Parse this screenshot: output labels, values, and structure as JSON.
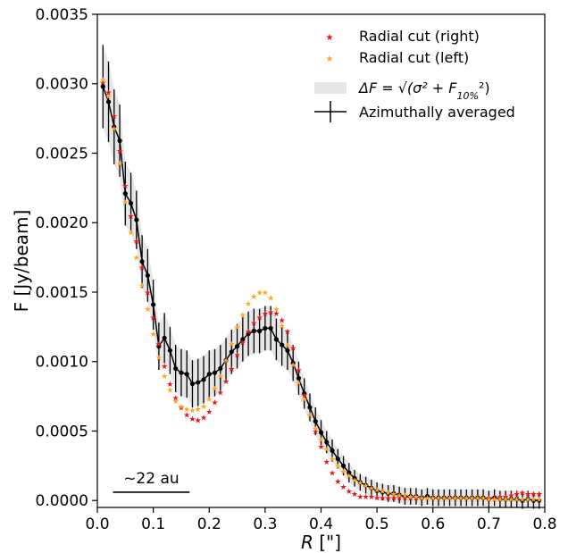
{
  "chart_data": {
    "type": "line",
    "xlabel_main": "R",
    "xlabel_unit": " [\"]",
    "ylabel": "F [Jy/beam]",
    "xlim": [
      0.0,
      0.8
    ],
    "ylim": [
      -5e-05,
      0.0035
    ],
    "x_ticks": [
      0.0,
      0.1,
      0.2,
      0.3,
      0.4,
      0.5,
      0.6,
      0.7,
      0.8
    ],
    "x_tick_labels": [
      "0.0",
      "0.1",
      "0.2",
      "0.3",
      "0.4",
      "0.5",
      "0.6",
      "0.7",
      "0.8"
    ],
    "y_ticks": [
      0.0,
      0.0005,
      0.001,
      0.0015,
      0.002,
      0.0025,
      0.003,
      0.0035
    ],
    "y_tick_labels": [
      "0.0000",
      "0.0005",
      "0.0010",
      "0.0015",
      "0.0020",
      "0.0025",
      "0.0030",
      "0.0035"
    ],
    "grid": false,
    "legend_position": "top-right",
    "legend": {
      "right_cut": "Radial cut (right)",
      "left_cut": "Radial cut (left)",
      "band_prefix": "ΔF = √(σ² + F",
      "band_sub": "10%",
      "band_suffix": "²)",
      "average": "Azimuthally averaged"
    },
    "scale_bar": {
      "label": "~22 au",
      "x_start": 0.028,
      "x_end": 0.165,
      "y": 6e-05
    },
    "colors": {
      "right_cut": "#e8141c",
      "left_cut": "#ffa51f",
      "band": "#e6e6e6",
      "average": "#000000"
    },
    "series": [
      {
        "name": "Azimuthally averaged",
        "x": [
          0.01,
          0.02,
          0.03,
          0.04,
          0.05,
          0.06,
          0.07,
          0.08,
          0.09,
          0.1,
          0.11,
          0.12,
          0.13,
          0.14,
          0.15,
          0.16,
          0.17,
          0.18,
          0.19,
          0.2,
          0.21,
          0.22,
          0.23,
          0.24,
          0.25,
          0.26,
          0.27,
          0.28,
          0.29,
          0.3,
          0.31,
          0.32,
          0.33,
          0.34,
          0.35,
          0.36,
          0.37,
          0.38,
          0.39,
          0.4,
          0.41,
          0.42,
          0.43,
          0.44,
          0.45,
          0.46,
          0.47,
          0.48,
          0.49,
          0.5,
          0.51,
          0.52,
          0.53,
          0.54,
          0.55,
          0.56,
          0.57,
          0.58,
          0.59,
          0.6,
          0.61,
          0.62,
          0.63,
          0.64,
          0.65,
          0.66,
          0.67,
          0.68,
          0.69,
          0.7,
          0.71,
          0.72,
          0.73,
          0.74,
          0.75,
          0.76,
          0.77,
          0.78,
          0.79
        ],
        "y": [
          0.00298,
          0.00287,
          0.00269,
          0.00259,
          0.00221,
          0.00214,
          0.00202,
          0.00172,
          0.00162,
          0.00141,
          0.00111,
          0.00117,
          0.00108,
          0.00095,
          0.00092,
          0.00091,
          0.00084,
          0.00085,
          0.00087,
          0.00091,
          0.00092,
          0.00095,
          0.00101,
          0.00107,
          0.00111,
          0.00116,
          0.0012,
          0.00122,
          0.00122,
          0.00124,
          0.00124,
          0.00116,
          0.00112,
          0.00108,
          0.00099,
          0.00088,
          0.00077,
          0.00067,
          0.00057,
          0.00049,
          0.00042,
          0.00036,
          0.0003,
          0.00025,
          0.0002,
          0.00016,
          0.00013,
          0.00011,
          9e-05,
          7e-05,
          6e-05,
          5e-05,
          5e-05,
          4e-05,
          3e-05,
          3e-05,
          3e-05,
          2e-05,
          3e-05,
          2e-05,
          2e-05,
          2e-05,
          2e-05,
          2e-05,
          2e-05,
          2e-05,
          2e-05,
          2e-05,
          2e-05,
          1e-05,
          2e-05,
          1e-05,
          1e-05,
          1e-05,
          1e-05,
          0.0,
          1e-05,
          0.0,
          0.0
        ],
        "yerr": [
          0.0003,
          0.00029,
          0.00027,
          0.00026,
          0.00023,
          0.00022,
          0.00021,
          0.00019,
          0.00019,
          0.00018,
          0.00017,
          0.00018,
          0.00017,
          0.00017,
          0.00017,
          0.00017,
          0.00017,
          0.00017,
          0.00017,
          0.00017,
          0.00017,
          0.00017,
          0.00016,
          0.00016,
          0.00016,
          0.00016,
          0.00016,
          0.00016,
          0.00016,
          0.00016,
          0.00016,
          0.00015,
          0.00015,
          0.00014,
          0.00013,
          0.00012,
          0.00011,
          0.0001,
          0.0001,
          9e-05,
          8e-05,
          8e-05,
          7e-05,
          7e-05,
          7e-05,
          6e-05,
          6e-05,
          6e-05,
          6e-05,
          6e-05,
          6e-05,
          6e-05,
          6e-05,
          6e-05,
          6e-05,
          6e-05,
          6e-05,
          6e-05,
          6e-05,
          6e-05,
          6e-05,
          6e-05,
          6e-05,
          6e-05,
          6e-05,
          6e-05,
          6e-05,
          6e-05,
          6e-05,
          6e-05,
          6e-05,
          6e-05,
          6e-05,
          6e-05,
          6e-05,
          6e-05,
          6e-05,
          6e-05,
          6e-05
        ]
      },
      {
        "name": "Radial cut (right)",
        "x": [
          0.01,
          0.02,
          0.03,
          0.04,
          0.05,
          0.06,
          0.07,
          0.08,
          0.09,
          0.1,
          0.11,
          0.12,
          0.13,
          0.14,
          0.15,
          0.16,
          0.17,
          0.18,
          0.19,
          0.2,
          0.21,
          0.22,
          0.23,
          0.24,
          0.25,
          0.26,
          0.27,
          0.28,
          0.29,
          0.3,
          0.31,
          0.32,
          0.33,
          0.34,
          0.35,
          0.36,
          0.37,
          0.38,
          0.39,
          0.4,
          0.41,
          0.42,
          0.43,
          0.44,
          0.45,
          0.46,
          0.47,
          0.48,
          0.49,
          0.5,
          0.51,
          0.52,
          0.53,
          0.54,
          0.55,
          0.56,
          0.57,
          0.58,
          0.59,
          0.6,
          0.61,
          0.62,
          0.63,
          0.64,
          0.65,
          0.66,
          0.67,
          0.68,
          0.69,
          0.7,
          0.71,
          0.72,
          0.73,
          0.74,
          0.75,
          0.76,
          0.77,
          0.78,
          0.79
        ],
        "y": [
          0.00301,
          0.00294,
          0.00277,
          0.00252,
          0.00227,
          0.00205,
          0.00187,
          0.00168,
          0.0015,
          0.00132,
          0.00113,
          0.00097,
          0.00084,
          0.00074,
          0.00067,
          0.00062,
          0.00059,
          0.00058,
          0.0006,
          0.00064,
          0.00071,
          0.00078,
          0.00086,
          0.00095,
          0.00105,
          0.00114,
          0.00122,
          0.00128,
          0.00132,
          0.00135,
          0.00136,
          0.00135,
          0.0013,
          0.00122,
          0.0011,
          0.00094,
          0.00076,
          0.00062,
          0.0005,
          0.00039,
          0.00028,
          0.0002,
          0.00014,
          0.0001,
          7e-05,
          5e-05,
          3e-05,
          3e-05,
          3e-05,
          2e-05,
          2e-05,
          2e-05,
          2e-05,
          2e-05,
          2e-05,
          2e-05,
          2e-05,
          2e-05,
          2e-05,
          2e-05,
          2e-05,
          2e-05,
          2e-05,
          2e-05,
          2e-05,
          2e-05,
          2e-05,
          2e-05,
          2e-05,
          2e-05,
          2e-05,
          3e-05,
          3e-05,
          4e-05,
          5e-05,
          6e-05,
          5e-05,
          5e-05,
          5e-05
        ]
      },
      {
        "name": "Radial cut (left)",
        "x": [
          0.01,
          0.02,
          0.03,
          0.04,
          0.05,
          0.06,
          0.07,
          0.08,
          0.09,
          0.1,
          0.11,
          0.12,
          0.13,
          0.14,
          0.15,
          0.16,
          0.17,
          0.18,
          0.19,
          0.2,
          0.21,
          0.22,
          0.23,
          0.24,
          0.25,
          0.26,
          0.27,
          0.28,
          0.29,
          0.3,
          0.31,
          0.32,
          0.33,
          0.34,
          0.35,
          0.36,
          0.37,
          0.38,
          0.39,
          0.4,
          0.41,
          0.42,
          0.43,
          0.44,
          0.45,
          0.46,
          0.47,
          0.48,
          0.49,
          0.5,
          0.51,
          0.52,
          0.53,
          0.54,
          0.55,
          0.56,
          0.57,
          0.58,
          0.59,
          0.6,
          0.61,
          0.62,
          0.63,
          0.64,
          0.65,
          0.66,
          0.67,
          0.68,
          0.69,
          0.7,
          0.71,
          0.72,
          0.73,
          0.74,
          0.75,
          0.76,
          0.77,
          0.78,
          0.79
        ],
        "y": [
          0.00303,
          0.00291,
          0.00268,
          0.00243,
          0.00215,
          0.00193,
          0.00175,
          0.00155,
          0.00138,
          0.0012,
          0.00103,
          0.0009,
          0.0008,
          0.00072,
          0.00068,
          0.00066,
          0.00065,
          0.00066,
          0.00068,
          0.00073,
          0.00081,
          0.0009,
          0.00101,
          0.00113,
          0.00125,
          0.00134,
          0.00142,
          0.00147,
          0.0015,
          0.0015,
          0.00146,
          0.00138,
          0.00126,
          0.00112,
          0.00098,
          0.00085,
          0.00073,
          0.00062,
          0.00052,
          0.00044,
          0.00037,
          0.0003,
          0.00025,
          0.00021,
          0.00018,
          0.00015,
          0.00013,
          0.00011,
          9e-05,
          8e-05,
          7e-05,
          6e-05,
          5e-05,
          4e-05,
          4e-05,
          3e-05,
          3e-05,
          2e-05,
          2e-05,
          2e-05,
          2e-05,
          2e-05,
          2e-05,
          2e-05,
          2e-05,
          2e-05,
          2e-05,
          2e-05,
          2e-05,
          1e-05,
          1e-05,
          1e-05,
          1e-05,
          1e-05,
          1e-05,
          1e-05,
          1e-05,
          1e-05,
          1e-05
        ]
      }
    ]
  }
}
